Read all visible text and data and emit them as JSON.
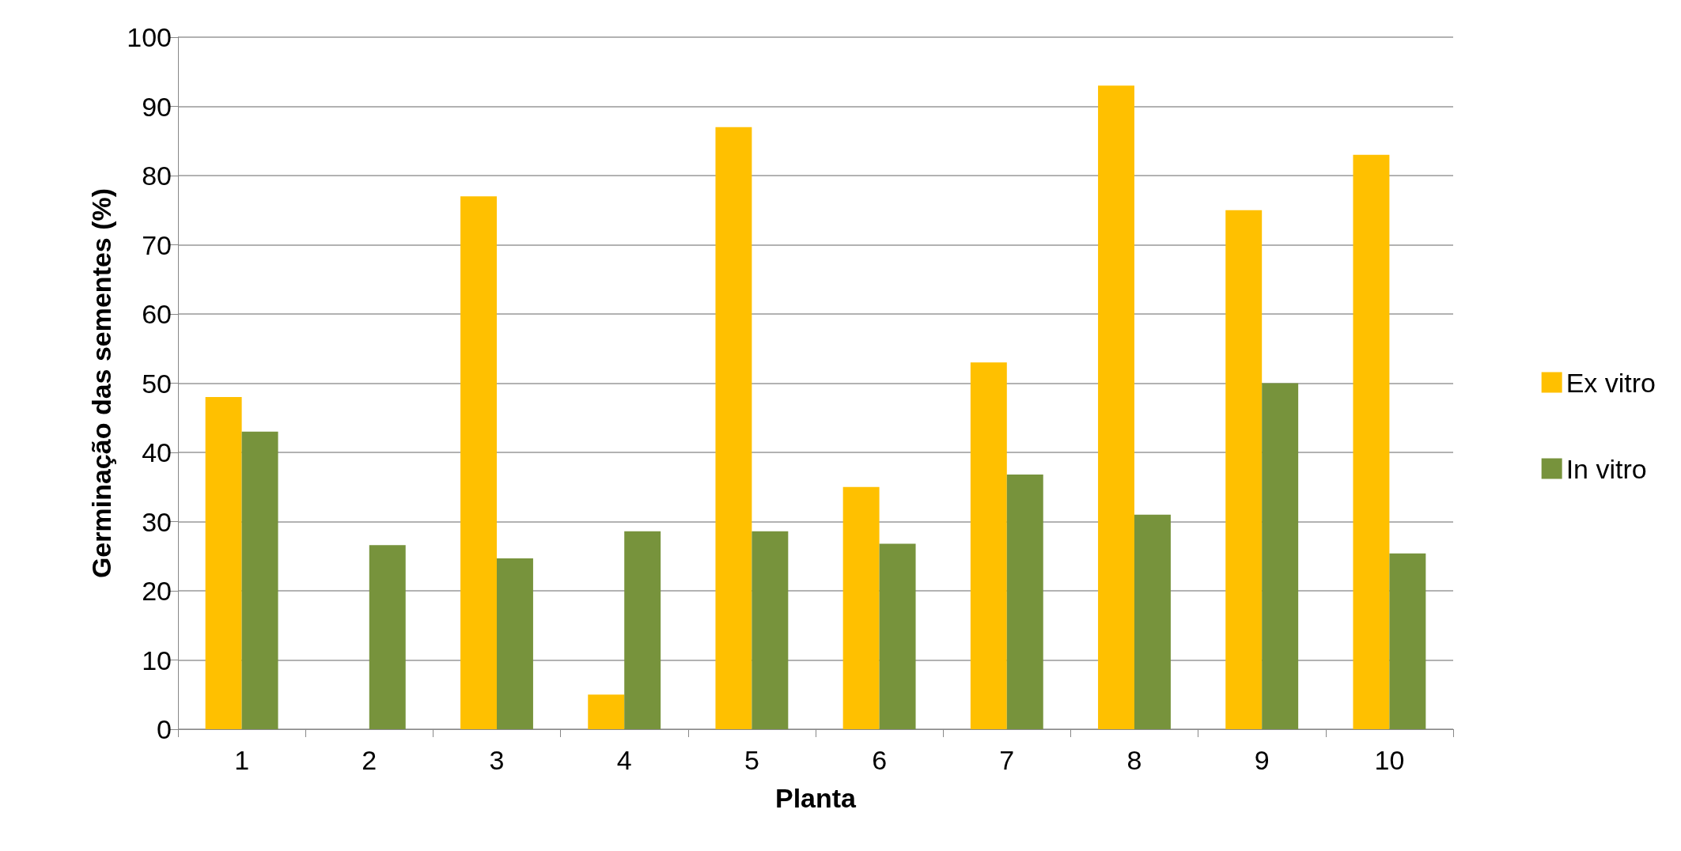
{
  "chart_data": {
    "type": "bar",
    "xlabel": "Planta",
    "ylabel": "Germinação das sementes (%)",
    "categories": [
      "1",
      "2",
      "3",
      "4",
      "5",
      "6",
      "7",
      "8",
      "9",
      "10"
    ],
    "series": [
      {
        "name": "Ex vitro",
        "color": "#ffc000",
        "values": [
          48,
          0,
          77,
          5,
          87,
          35,
          53,
          93,
          75,
          83
        ]
      },
      {
        "name": "In vitro",
        "color": "#77933c",
        "values": [
          43,
          26.6,
          24.7,
          28.6,
          28.6,
          26.8,
          36.8,
          31,
          50,
          25.4
        ]
      }
    ],
    "ylim": [
      0,
      100
    ],
    "yticks": [
      0,
      10,
      20,
      30,
      40,
      50,
      60,
      70,
      80,
      90,
      100
    ],
    "grid": "y",
    "legend": "right"
  }
}
